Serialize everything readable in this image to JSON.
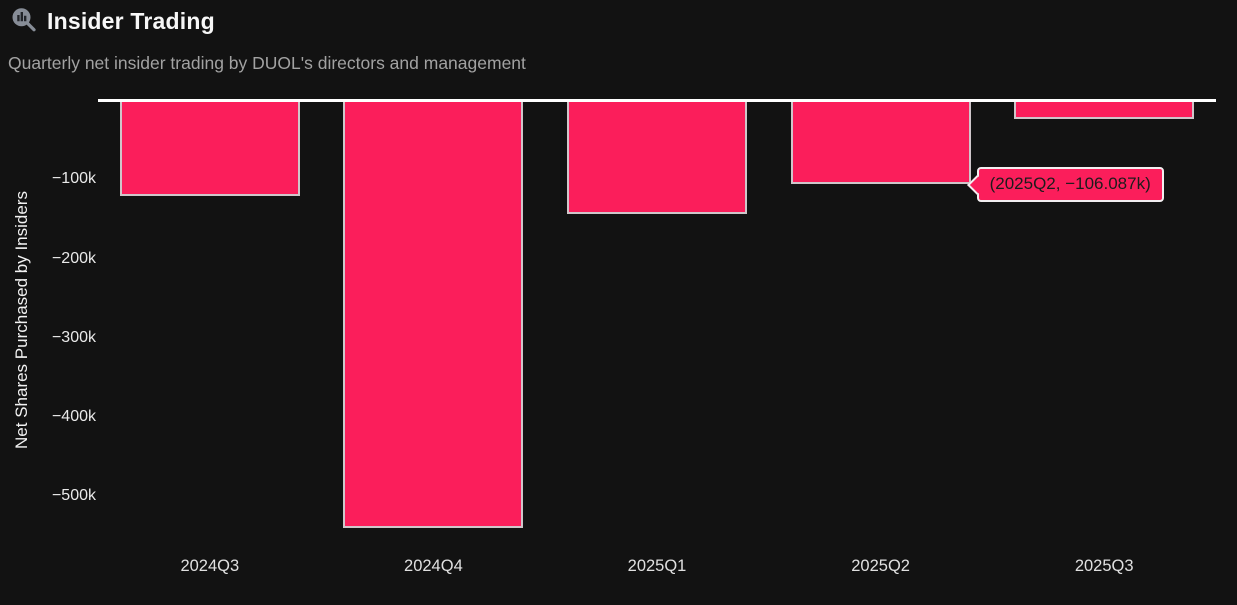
{
  "header": {
    "title": "Insider Trading",
    "subtitle": "Quarterly net insider trading by DUOL's directors and management",
    "icon": "chart-magnifier-icon"
  },
  "colors": {
    "background": "#121212",
    "bar_fill": "#fb1e5b",
    "bar_border": "#cfc6ca",
    "zero_line": "#ffffff",
    "title_text": "#f7f7f7",
    "subtitle_text": "#a2a2a2",
    "tick_text": "#e9e9e9",
    "tooltip_border": "#f2eef0",
    "tooltip_text": "#1c1c1c"
  },
  "chart_data": {
    "type": "bar",
    "title": "Insider Trading",
    "subtitle": "Quarterly net insider trading by DUOL's directors and management",
    "categories": [
      "2024Q3",
      "2024Q4",
      "2025Q1",
      "2025Q2",
      "2025Q3"
    ],
    "values_thousands": [
      -121,
      -540,
      -144,
      -106.087,
      -23.5
    ],
    "series_name": "Net shares purchased by insiders",
    "xlabel": "",
    "ylabel": "Net Shares Purchased by Insiders",
    "y_ticks": [
      {
        "label": "−100k",
        "value_thousands": -100
      },
      {
        "label": "−200k",
        "value_thousands": -200
      },
      {
        "label": "−300k",
        "value_thousands": -300
      },
      {
        "label": "−400k",
        "value_thousands": -400
      },
      {
        "label": "−500k",
        "value_thousands": -500
      }
    ],
    "ylim_thousands": [
      -560,
      0
    ],
    "grid": false,
    "legend": false,
    "bar_color": "#fb1e5b",
    "annotations": [
      {
        "text": "(2025Q2, −106.087k)",
        "target_category": "2025Q2",
        "target_value_thousands": -106.087
      }
    ]
  },
  "tooltip": {
    "text": "(2025Q2, −106.087k)"
  }
}
